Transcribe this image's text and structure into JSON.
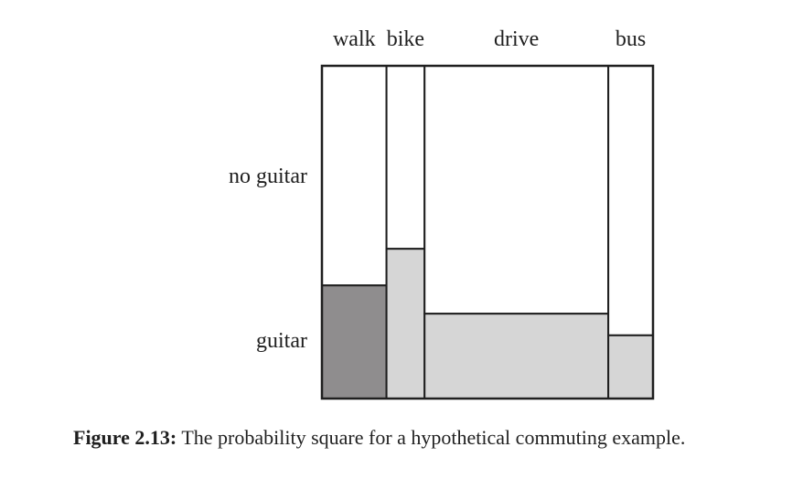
{
  "diagram": {
    "column_labels": [
      "walk",
      "bike",
      "drive",
      "bus"
    ],
    "row_labels": {
      "top": "no guitar",
      "bottom": "guitar"
    },
    "columns": [
      {
        "label": "walk",
        "width_fraction": 0.195,
        "guitar_fraction": 0.34,
        "guitar_fill": "#8f8d8e"
      },
      {
        "label": "bike",
        "width_fraction": 0.115,
        "guitar_fraction": 0.45,
        "guitar_fill": "#d6d6d6"
      },
      {
        "label": "drive",
        "width_fraction": 0.555,
        "guitar_fraction": 0.255,
        "guitar_fill": "#d6d6d6"
      },
      {
        "label": "bus",
        "width_fraction": 0.135,
        "guitar_fraction": 0.19,
        "guitar_fill": "#d6d6d6"
      }
    ],
    "no_guitar_fill": "#ffffff",
    "border_color": "#1f1f1f"
  },
  "caption": {
    "label": "Figure 2.13:",
    "text": " The probability square for a hypothetical commuting example."
  }
}
